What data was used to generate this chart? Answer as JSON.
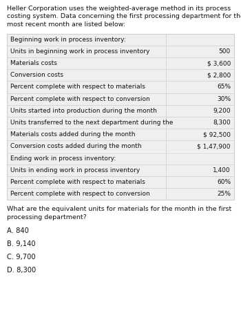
{
  "header_text": "Heller Corporation uses the weighted-average method in its process costing system. Data concerning the first processing department for the most recent month are listed below:",
  "table_rows": [
    {
      "label": "Beginning work in process inventory:",
      "value": "",
      "header": true
    },
    {
      "label": "Units in beginning work in process inventory",
      "value": "500",
      "header": false
    },
    {
      "label": "Materials costs",
      "value": "$ 3,600",
      "header": false
    },
    {
      "label": "Conversion costs",
      "value": "$ 2,800",
      "header": false
    },
    {
      "label": "Percent complete with respect to materials",
      "value": "65%",
      "header": false
    },
    {
      "label": "Percent complete with respect to conversion",
      "value": "30%",
      "header": false
    },
    {
      "label": "Units started into production during the month",
      "value": "9,200",
      "header": false
    },
    {
      "label": "Units transferred to the next department during the",
      "value": "8,300",
      "header": false
    },
    {
      "label": "Materials costs added during the month",
      "value": "$ 92,500",
      "header": false
    },
    {
      "label": "Conversion costs added during the month",
      "value": "$ 1,47,900",
      "header": false
    },
    {
      "label": "Ending work in process inventory:",
      "value": "",
      "header": true
    },
    {
      "label": "Units in ending work in process inventory",
      "value": "1,400",
      "header": false
    },
    {
      "label": "Percent complete with respect to materials",
      "value": "60%",
      "header": false
    },
    {
      "label": "Percent complete with respect to conversion",
      "value": "25%",
      "header": false
    }
  ],
  "question": "What are the equivalent units for materials for the month in the first\nprocessing department?",
  "options": [
    "A. 840",
    "B. 9,140",
    "C. 9,700",
    "D. 8,300"
  ],
  "bg_color": "#ffffff",
  "table_bg": "#efefef",
  "table_border": "#cccccc",
  "text_color": "#111111",
  "font_size_header": 6.8,
  "font_size_table": 6.5,
  "font_size_question": 6.8,
  "font_size_options": 7.2,
  "fig_width": 3.5,
  "fig_height": 4.5,
  "dpi": 100
}
